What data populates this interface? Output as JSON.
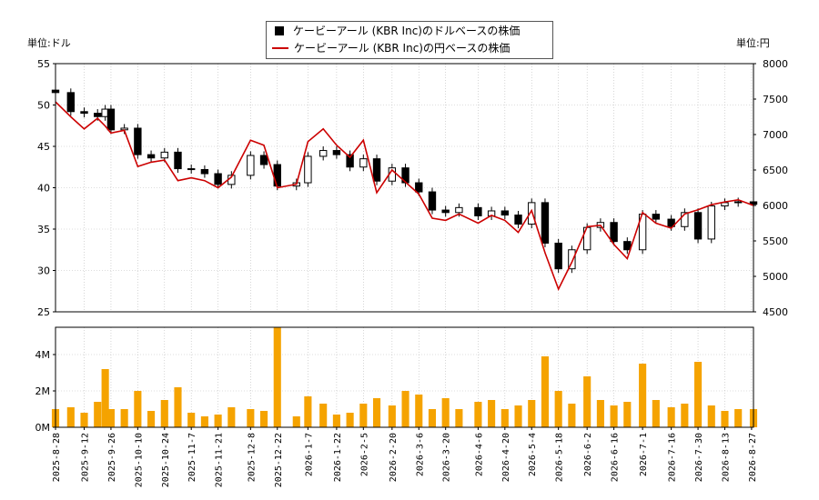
{
  "legend": {
    "usd_label": "ケービーアール (KBR Inc)のドルベースの株価",
    "jpy_label": "ケービーアール (KBR Inc)の円ベースの株価"
  },
  "units": {
    "left": "単位:ドル",
    "right": "単位:円"
  },
  "colors": {
    "usd_candle": "#000000",
    "jpy_line": "#cc0000",
    "volume": "#f5a300",
    "grid": "#bbbbbb"
  },
  "chart_data": {
    "type": "line",
    "x_ticks": [
      "2025-8-28",
      "2025-9-12",
      "2025-9-26",
      "2025-10-10",
      "2025-10-24",
      "2025-11-7",
      "2025-11-21",
      "2025-12-8",
      "2025-12-22",
      "2026-1-7",
      "2026-1-22",
      "2026-2-5",
      "2026-2-20",
      "2026-3-6",
      "2026-3-20",
      "2026-4-6",
      "2026-4-20",
      "2026-5-4",
      "2026-5-18",
      "2026-6-2",
      "2026-6-16",
      "2026-7-1",
      "2026-7-16",
      "2026-7-30",
      "2026-8-13",
      "2026-8-27"
    ],
    "x_range": [
      "2025-8-28",
      "2026-8-28"
    ],
    "price_axis_usd": {
      "ticks": [
        25,
        30,
        35,
        40,
        45,
        50,
        55
      ],
      "ylim": [
        25,
        55
      ]
    },
    "price_axis_jpy": {
      "ticks": [
        4500,
        5000,
        5500,
        6000,
        6500,
        7000,
        7500,
        8000
      ],
      "ylim": [
        4500,
        8000
      ]
    },
    "volume_axis": {
      "ticks": [
        "0M",
        "2M",
        "4M"
      ],
      "tick_values": [
        0,
        2,
        4
      ],
      "ylim": [
        0,
        5.5
      ]
    },
    "series": [
      {
        "name": "ケービーアール (KBR Inc)のドルベースの株価",
        "points": [
          [
            "2025-8-28",
            51.5
          ],
          [
            "2025-9-5",
            49.2
          ],
          [
            "2025-9-12",
            49.0
          ],
          [
            "2025-9-19",
            48.6
          ],
          [
            "2025-9-23",
            49.5
          ],
          [
            "2025-9-26",
            47.0
          ],
          [
            "2025-10-3",
            47.2
          ],
          [
            "2025-10-10",
            44.0
          ],
          [
            "2025-10-17",
            43.6
          ],
          [
            "2025-10-24",
            44.3
          ],
          [
            "2025-10-31",
            42.3
          ],
          [
            "2025-11-7",
            42.2
          ],
          [
            "2025-11-14",
            41.7
          ],
          [
            "2025-11-21",
            40.4
          ],
          [
            "2025-11-28",
            41.5
          ],
          [
            "2025-12-8",
            43.9
          ],
          [
            "2025-12-15",
            42.8
          ],
          [
            "2025-12-22",
            40.2
          ],
          [
            "2026-1-1",
            40.6
          ],
          [
            "2026-1-7",
            43.8
          ],
          [
            "2026-1-15",
            44.5
          ],
          [
            "2026-1-22",
            44.0
          ],
          [
            "2026-1-29",
            42.5
          ],
          [
            "2026-2-5",
            43.5
          ],
          [
            "2026-2-12",
            40.8
          ],
          [
            "2026-2-20",
            42.4
          ],
          [
            "2026-2-27",
            40.6
          ],
          [
            "2026-3-6",
            39.5
          ],
          [
            "2026-3-13",
            37.3
          ],
          [
            "2026-3-20",
            37.0
          ],
          [
            "2026-3-27",
            37.6
          ],
          [
            "2026-4-6",
            36.6
          ],
          [
            "2026-4-13",
            37.2
          ],
          [
            "2026-4-20",
            36.7
          ],
          [
            "2026-4-27",
            35.6
          ],
          [
            "2026-5-4",
            38.2
          ],
          [
            "2026-5-11",
            33.3
          ],
          [
            "2026-5-18",
            30.2
          ],
          [
            "2026-5-25",
            32.5
          ],
          [
            "2026-6-2",
            35.2
          ],
          [
            "2026-6-9",
            35.8
          ],
          [
            "2026-6-16",
            33.5
          ],
          [
            "2026-6-23",
            32.5
          ],
          [
            "2026-7-1",
            36.8
          ],
          [
            "2026-7-8",
            36.2
          ],
          [
            "2026-7-16",
            35.3
          ],
          [
            "2026-7-23",
            37.0
          ],
          [
            "2026-7-30",
            33.8
          ],
          [
            "2026-8-6",
            37.8
          ],
          [
            "2026-8-13",
            38.2
          ],
          [
            "2026-8-20",
            38.3
          ],
          [
            "2026-8-28",
            38.0
          ]
        ]
      },
      {
        "name": "ケービーアール (KBR Inc)の円ベースの株価",
        "points": [
          [
            "2025-8-28",
            7460
          ],
          [
            "2025-9-5",
            7250
          ],
          [
            "2025-9-12",
            7080
          ],
          [
            "2025-9-19",
            7230
          ],
          [
            "2025-9-23",
            7120
          ],
          [
            "2025-9-26",
            7020
          ],
          [
            "2025-10-3",
            7060
          ],
          [
            "2025-10-10",
            6550
          ],
          [
            "2025-10-17",
            6610
          ],
          [
            "2025-10-24",
            6640
          ],
          [
            "2025-10-31",
            6350
          ],
          [
            "2025-11-7",
            6390
          ],
          [
            "2025-11-14",
            6350
          ],
          [
            "2025-11-21",
            6250
          ],
          [
            "2025-11-28",
            6400
          ],
          [
            "2025-12-8",
            6920
          ],
          [
            "2025-12-15",
            6850
          ],
          [
            "2025-12-22",
            6250
          ],
          [
            "2026-1-1",
            6300
          ],
          [
            "2026-1-7",
            6900
          ],
          [
            "2026-1-15",
            7080
          ],
          [
            "2026-1-22",
            6850
          ],
          [
            "2026-1-29",
            6680
          ],
          [
            "2026-2-5",
            6920
          ],
          [
            "2026-2-12",
            6180
          ],
          [
            "2026-2-20",
            6500
          ],
          [
            "2026-2-27",
            6330
          ],
          [
            "2026-3-6",
            6160
          ],
          [
            "2026-3-13",
            5820
          ],
          [
            "2026-3-20",
            5790
          ],
          [
            "2026-3-27",
            5880
          ],
          [
            "2026-4-6",
            5750
          ],
          [
            "2026-4-13",
            5860
          ],
          [
            "2026-4-20",
            5790
          ],
          [
            "2026-4-27",
            5620
          ],
          [
            "2026-5-4",
            5930
          ],
          [
            "2026-5-11",
            5330
          ],
          [
            "2026-5-18",
            4820
          ],
          [
            "2026-5-25",
            5200
          ],
          [
            "2026-6-2",
            5700
          ],
          [
            "2026-6-9",
            5720
          ],
          [
            "2026-6-16",
            5450
          ],
          [
            "2026-6-23",
            5250
          ],
          [
            "2026-7-1",
            5900
          ],
          [
            "2026-7-8",
            5750
          ],
          [
            "2026-7-16",
            5680
          ],
          [
            "2026-7-23",
            5880
          ],
          [
            "2026-7-30",
            5940
          ],
          [
            "2026-8-6",
            6010
          ],
          [
            "2026-8-13",
            6050
          ],
          [
            "2026-8-20",
            6080
          ],
          [
            "2026-8-28",
            6000
          ]
        ]
      },
      {
        "name": "",
        "kind": "volume_M",
        "points": [
          [
            "2025-8-28",
            1.0
          ],
          [
            "2025-9-5",
            1.1
          ],
          [
            "2025-9-12",
            0.8
          ],
          [
            "2025-9-19",
            1.4
          ],
          [
            "2025-9-23",
            3.2
          ],
          [
            "2025-9-26",
            1.0
          ],
          [
            "2025-10-3",
            1.0
          ],
          [
            "2025-10-10",
            2.0
          ],
          [
            "2025-10-17",
            0.9
          ],
          [
            "2025-10-24",
            1.5
          ],
          [
            "2025-10-31",
            2.2
          ],
          [
            "2025-11-7",
            0.8
          ],
          [
            "2025-11-14",
            0.6
          ],
          [
            "2025-11-21",
            0.7
          ],
          [
            "2025-11-28",
            1.1
          ],
          [
            "2025-12-8",
            1.0
          ],
          [
            "2025-12-15",
            0.9
          ],
          [
            "2025-12-22",
            5.5
          ],
          [
            "2026-1-1",
            0.6
          ],
          [
            "2026-1-7",
            1.7
          ],
          [
            "2026-1-15",
            1.3
          ],
          [
            "2026-1-22",
            0.7
          ],
          [
            "2026-1-29",
            0.8
          ],
          [
            "2026-2-5",
            1.3
          ],
          [
            "2026-2-12",
            1.6
          ],
          [
            "2026-2-20",
            1.2
          ],
          [
            "2026-2-27",
            2.0
          ],
          [
            "2026-3-6",
            1.8
          ],
          [
            "2026-3-13",
            1.0
          ],
          [
            "2026-3-20",
            1.6
          ],
          [
            "2026-3-27",
            1.0
          ],
          [
            "2026-4-6",
            1.4
          ],
          [
            "2026-4-13",
            1.5
          ],
          [
            "2026-4-20",
            1.0
          ],
          [
            "2026-4-27",
            1.2
          ],
          [
            "2026-5-4",
            1.5
          ],
          [
            "2026-5-11",
            3.9
          ],
          [
            "2026-5-18",
            2.0
          ],
          [
            "2026-5-25",
            1.3
          ],
          [
            "2026-6-2",
            2.8
          ],
          [
            "2026-6-9",
            1.5
          ],
          [
            "2026-6-16",
            1.2
          ],
          [
            "2026-6-23",
            1.4
          ],
          [
            "2026-7-1",
            3.5
          ],
          [
            "2026-7-8",
            1.5
          ],
          [
            "2026-7-16",
            1.1
          ],
          [
            "2026-7-23",
            1.3
          ],
          [
            "2026-7-30",
            3.6
          ],
          [
            "2026-8-6",
            1.2
          ],
          [
            "2026-8-13",
            0.9
          ],
          [
            "2026-8-20",
            1.0
          ],
          [
            "2026-8-28",
            1.0
          ]
        ]
      }
    ],
    "grid": true,
    "legend_position": "top-center"
  }
}
